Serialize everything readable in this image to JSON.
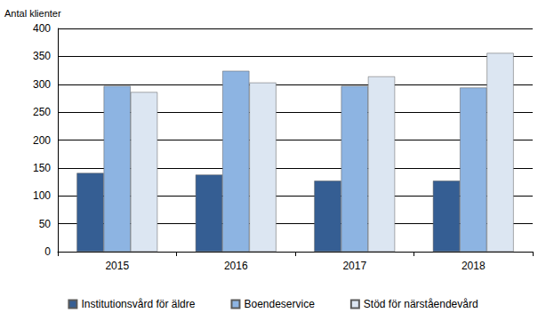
{
  "chart_data": {
    "type": "bar",
    "y_label": "Antal klienter",
    "categories": [
      "2015",
      "2016",
      "2017",
      "2018"
    ],
    "series": [
      {
        "name": "Institutionsvård för äldre",
        "color": "#355E93",
        "values": [
          141,
          138,
          127,
          127
        ]
      },
      {
        "name": "Boendeservice",
        "color": "#8DB4E2",
        "values": [
          297,
          324,
          297,
          294
        ]
      },
      {
        "name": "Stöd för närståendevård",
        "color": "#DCE6F2",
        "values": [
          286,
          303,
          314,
          356
        ]
      }
    ],
    "ylim": [
      0,
      400
    ],
    "yticks": [
      0,
      50,
      100,
      150,
      200,
      250,
      300,
      350,
      400
    ],
    "grid": true,
    "legend": "bottom"
  }
}
